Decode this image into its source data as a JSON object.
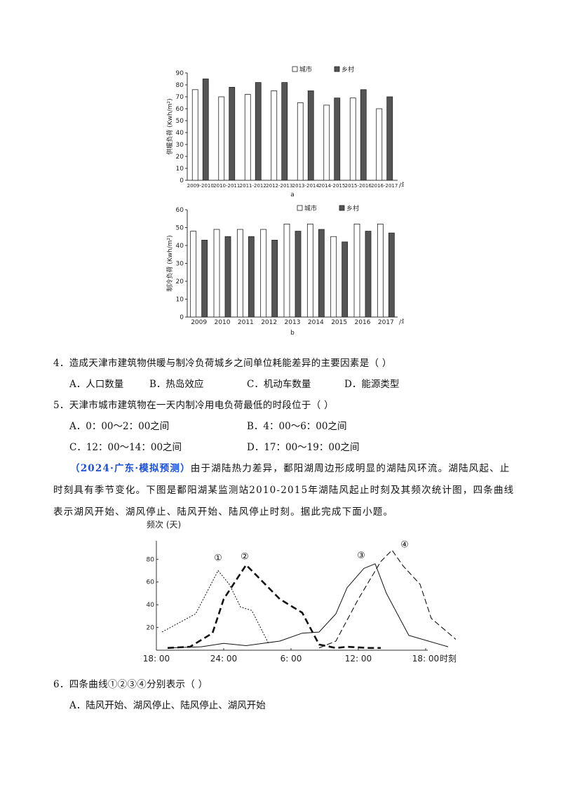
{
  "chart_data": [
    {
      "type": "bar",
      "panel_label": "a",
      "ylabel": "供暖负荷 (Kwh/m²)",
      "ylim": [
        0,
        90
      ],
      "yticks": [
        0,
        10,
        20,
        30,
        40,
        50,
        60,
        70,
        80,
        90
      ],
      "xunit": "/年",
      "categories": [
        "2009-2010",
        "2010-2011",
        "2011-2012",
        "2012-2013",
        "2013-2014",
        "2014-2015",
        "2015-2016",
        "2016-2017"
      ],
      "series": [
        {
          "name": "城市",
          "color": "#ffffff",
          "values": [
            76,
            70,
            72,
            75,
            65,
            63,
            69,
            60
          ]
        },
        {
          "name": "乡村",
          "color": "#555555",
          "values": [
            85,
            78,
            82,
            82,
            75,
            69,
            76,
            70
          ]
        }
      ]
    },
    {
      "type": "bar",
      "panel_label": "b",
      "ylabel": "制冷负荷 (Kwh/m²)",
      "ylim": [
        0,
        60
      ],
      "yticks": [
        0,
        10,
        20,
        30,
        40,
        50,
        60
      ],
      "xunit": "/年",
      "categories": [
        "2009",
        "2010",
        "2011",
        "2012",
        "2013",
        "2014",
        "2015",
        "2016",
        "2017"
      ],
      "series": [
        {
          "name": "城市",
          "color": "#ffffff",
          "values": [
            48,
            49,
            49,
            49,
            52,
            52,
            45,
            52,
            52
          ]
        },
        {
          "name": "乡村",
          "color": "#555555",
          "values": [
            43,
            45,
            45,
            43,
            48,
            49,
            42,
            48,
            47
          ]
        }
      ]
    },
    {
      "type": "line",
      "ylabel": "频次 (天)",
      "xunit": "时刻",
      "yticks": [
        20,
        40,
        60,
        80
      ],
      "ylim": [
        0,
        95
      ],
      "xticks": [
        "18: 00",
        "24: 00",
        "6: 00",
        "12: 00",
        "18: 00"
      ],
      "xrange_hours": [
        18,
        42
      ],
      "series": [
        {
          "name": "①",
          "style": "dotted",
          "points": [
            [
              18.5,
              16
            ],
            [
              21.5,
              32
            ],
            [
              23.5,
              70
            ],
            [
              24.5,
              58
            ],
            [
              25.5,
              38
            ],
            [
              26.5,
              35
            ],
            [
              28,
              6
            ]
          ]
        },
        {
          "name": "②",
          "style": "bold-dashed",
          "points": [
            [
              19,
              2
            ],
            [
              21,
              3
            ],
            [
              23,
              15
            ],
            [
              24,
              45
            ],
            [
              26,
              75
            ],
            [
              29,
              45
            ],
            [
              31,
              33
            ],
            [
              32.5,
              5
            ],
            [
              34,
              2
            ],
            [
              35,
              3
            ],
            [
              37,
              2
            ],
            [
              38,
              2
            ]
          ]
        },
        {
          "name": "③",
          "style": "solid",
          "points": [
            [
              19,
              2
            ],
            [
              22,
              3
            ],
            [
              24,
              6
            ],
            [
              26,
              4
            ],
            [
              29,
              8
            ],
            [
              31,
              15
            ],
            [
              32.5,
              16
            ],
            [
              34,
              32
            ],
            [
              35,
              55
            ],
            [
              36.5,
              72
            ],
            [
              37.5,
              76
            ],
            [
              38.5,
              50
            ],
            [
              40.5,
              13
            ],
            [
              44,
              3
            ]
          ]
        },
        {
          "name": "④",
          "style": "dashed",
          "points": [
            [
              32.5,
              2
            ],
            [
              34,
              8
            ],
            [
              36,
              45
            ],
            [
              38,
              78
            ],
            [
              39,
              88
            ],
            [
              40,
              74
            ],
            [
              41.5,
              58
            ],
            [
              42.5,
              28
            ],
            [
              45,
              7
            ],
            [
              45.5,
              9
            ]
          ]
        }
      ]
    }
  ],
  "text": {
    "panel_a": "a",
    "panel_b": "b",
    "q4": "4．造成天津市建筑物供暖与制冷负荷城乡之间单位耗能差异的主要因素是（    ）",
    "q4_options": [
      "A．人口数量",
      "B．热岛效应",
      "C．机动车数量",
      "D．能源类型"
    ],
    "q5": "5．天津市城市建筑物在一天内制冷用电负荷最低的时段位于（    ）",
    "q5_options": [
      "A．0：00～2：00之间",
      "B．4：00～6：00之间",
      "C．12：00～14：00之间",
      "D．17：00～19：00之间"
    ],
    "source_tag": "（2024·广东·模拟预测）",
    "passage": "由于湖陆热力差异，鄱阳湖周边形成明显的湖陆风环流。湖陆风起、止时刻具有季节变化。下图是鄱阳湖某监测站2010-2015年湖陆风起止时刻及其频次统计图，四条曲线表示湖风开始、湖风停止、陆风开始、陆风停止时刻。据此完成下面小题。",
    "q6": "6．四条曲线①②③④分别表示（    ）",
    "q6_option_a": "A．陆风开始、湖风停止、陆风停止、湖风开始"
  }
}
